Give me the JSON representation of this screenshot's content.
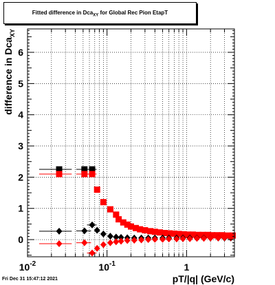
{
  "chart_data": {
    "type": "scatter",
    "title_main": "Fitted difference in Dca",
    "title_sub": "XY",
    "title_suffix": " for Global Rec Pion EtapT",
    "ylabel_main": "difference in Dca",
    "ylabel_sub": "XY",
    "xlabel": "pT/|q| (GeV/c)",
    "xscale": "log",
    "xlim": [
      0.01,
      4.0
    ],
    "ylim": [
      -0.55,
      6.75
    ],
    "grid": true,
    "x_tick_labels": [
      {
        "value": 0.01,
        "base": "10",
        "exp": "-2"
      },
      {
        "value": 0.1,
        "base": "10",
        "exp": "-1"
      },
      {
        "value": 1,
        "base": "1",
        "exp": ""
      }
    ],
    "y_tick_labels": [
      "0",
      "1",
      "2",
      "3",
      "4",
      "5",
      "6"
    ],
    "series": [
      {
        "color": "#000000",
        "marker": "square",
        "points": [
          [
            0.025,
            2.25
          ],
          [
            0.052,
            2.25
          ],
          [
            0.065,
            2.25
          ]
        ],
        "xerr": [
          [
            0.014,
            0.036
          ],
          [
            0.041,
            0.063
          ],
          [
            0.056,
            0.074
          ]
        ]
      },
      {
        "color": "#ff0000",
        "marker": "square",
        "points": [
          [
            0.025,
            2.1
          ],
          [
            0.052,
            2.1
          ],
          [
            0.065,
            2.1
          ],
          [
            0.075,
            1.6
          ],
          [
            0.09,
            1.2
          ],
          [
            0.11,
            0.97
          ],
          [
            0.13,
            0.8
          ],
          [
            0.14,
            0.65
          ],
          [
            0.16,
            0.55
          ],
          [
            0.18,
            0.48
          ],
          [
            0.2,
            0.42
          ],
          [
            0.23,
            0.37
          ],
          [
            0.26,
            0.33
          ],
          [
            0.3,
            0.3
          ],
          [
            0.35,
            0.27
          ],
          [
            0.4,
            0.25
          ],
          [
            0.46,
            0.23
          ],
          [
            0.53,
            0.21
          ],
          [
            0.61,
            0.2
          ],
          [
            0.7,
            0.19
          ],
          [
            0.8,
            0.18
          ],
          [
            0.92,
            0.17
          ],
          [
            1.05,
            0.16
          ],
          [
            1.2,
            0.16
          ],
          [
            1.4,
            0.15
          ],
          [
            1.6,
            0.15
          ],
          [
            1.85,
            0.15
          ],
          [
            2.1,
            0.14
          ],
          [
            2.4,
            0.14
          ],
          [
            2.8,
            0.14
          ],
          [
            3.3,
            0.13
          ],
          [
            3.8,
            0.13
          ]
        ],
        "xerr": [
          [
            0.014,
            0.036
          ],
          [
            0.041,
            0.063
          ],
          [
            0.056,
            0.074
          ]
        ]
      },
      {
        "color": "#000000",
        "marker": "diamond",
        "points": [
          [
            0.025,
            0.27
          ],
          [
            0.052,
            0.28
          ],
          [
            0.065,
            0.47
          ],
          [
            0.075,
            0.3
          ],
          [
            0.09,
            0.18
          ],
          [
            0.11,
            0.11
          ],
          [
            0.13,
            0.08
          ],
          [
            0.15,
            0.07
          ],
          [
            0.18,
            0.06
          ],
          [
            0.22,
            0.05
          ],
          [
            0.27,
            0.05
          ],
          [
            0.33,
            0.05
          ],
          [
            0.4,
            0.05
          ],
          [
            0.5,
            0.05
          ],
          [
            0.6,
            0.05
          ],
          [
            0.75,
            0.05
          ],
          [
            0.9,
            0.05
          ],
          [
            1.1,
            0.05
          ],
          [
            1.35,
            0.05
          ],
          [
            1.65,
            0.05
          ],
          [
            2.0,
            0.05
          ],
          [
            2.5,
            0.05
          ],
          [
            3.0,
            0.05
          ],
          [
            3.6,
            0.05
          ]
        ],
        "xerr": [
          [
            0.014,
            0.036
          ],
          [
            0.041,
            0.063
          ],
          [
            0.056,
            0.074
          ]
        ]
      },
      {
        "color": "#ff0000",
        "marker": "diamond",
        "points": [
          [
            0.025,
            -0.13
          ],
          [
            0.052,
            -0.1
          ],
          [
            0.065,
            -0.43
          ],
          [
            0.075,
            -0.28
          ],
          [
            0.09,
            -0.16
          ],
          [
            0.11,
            -0.1
          ],
          [
            0.13,
            -0.07
          ],
          [
            0.15,
            -0.05
          ],
          [
            0.18,
            -0.03
          ],
          [
            0.22,
            -0.02
          ],
          [
            0.27,
            -0.01
          ],
          [
            0.33,
            0.0
          ],
          [
            0.4,
            0.01
          ],
          [
            0.5,
            0.01
          ],
          [
            0.6,
            0.02
          ],
          [
            0.75,
            0.02
          ],
          [
            0.9,
            0.03
          ],
          [
            1.1,
            0.03
          ],
          [
            1.35,
            0.04
          ],
          [
            1.65,
            0.04
          ],
          [
            2.0,
            0.05
          ],
          [
            2.5,
            0.05
          ],
          [
            3.0,
            0.06
          ],
          [
            3.6,
            0.06
          ]
        ],
        "xerr": [
          [
            0.014,
            0.036
          ],
          [
            0.041,
            0.063
          ],
          [
            0.056,
            0.074
          ]
        ]
      }
    ]
  },
  "footer": {
    "timestamp": "Fri Dec 31 15:47:12 2021"
  }
}
